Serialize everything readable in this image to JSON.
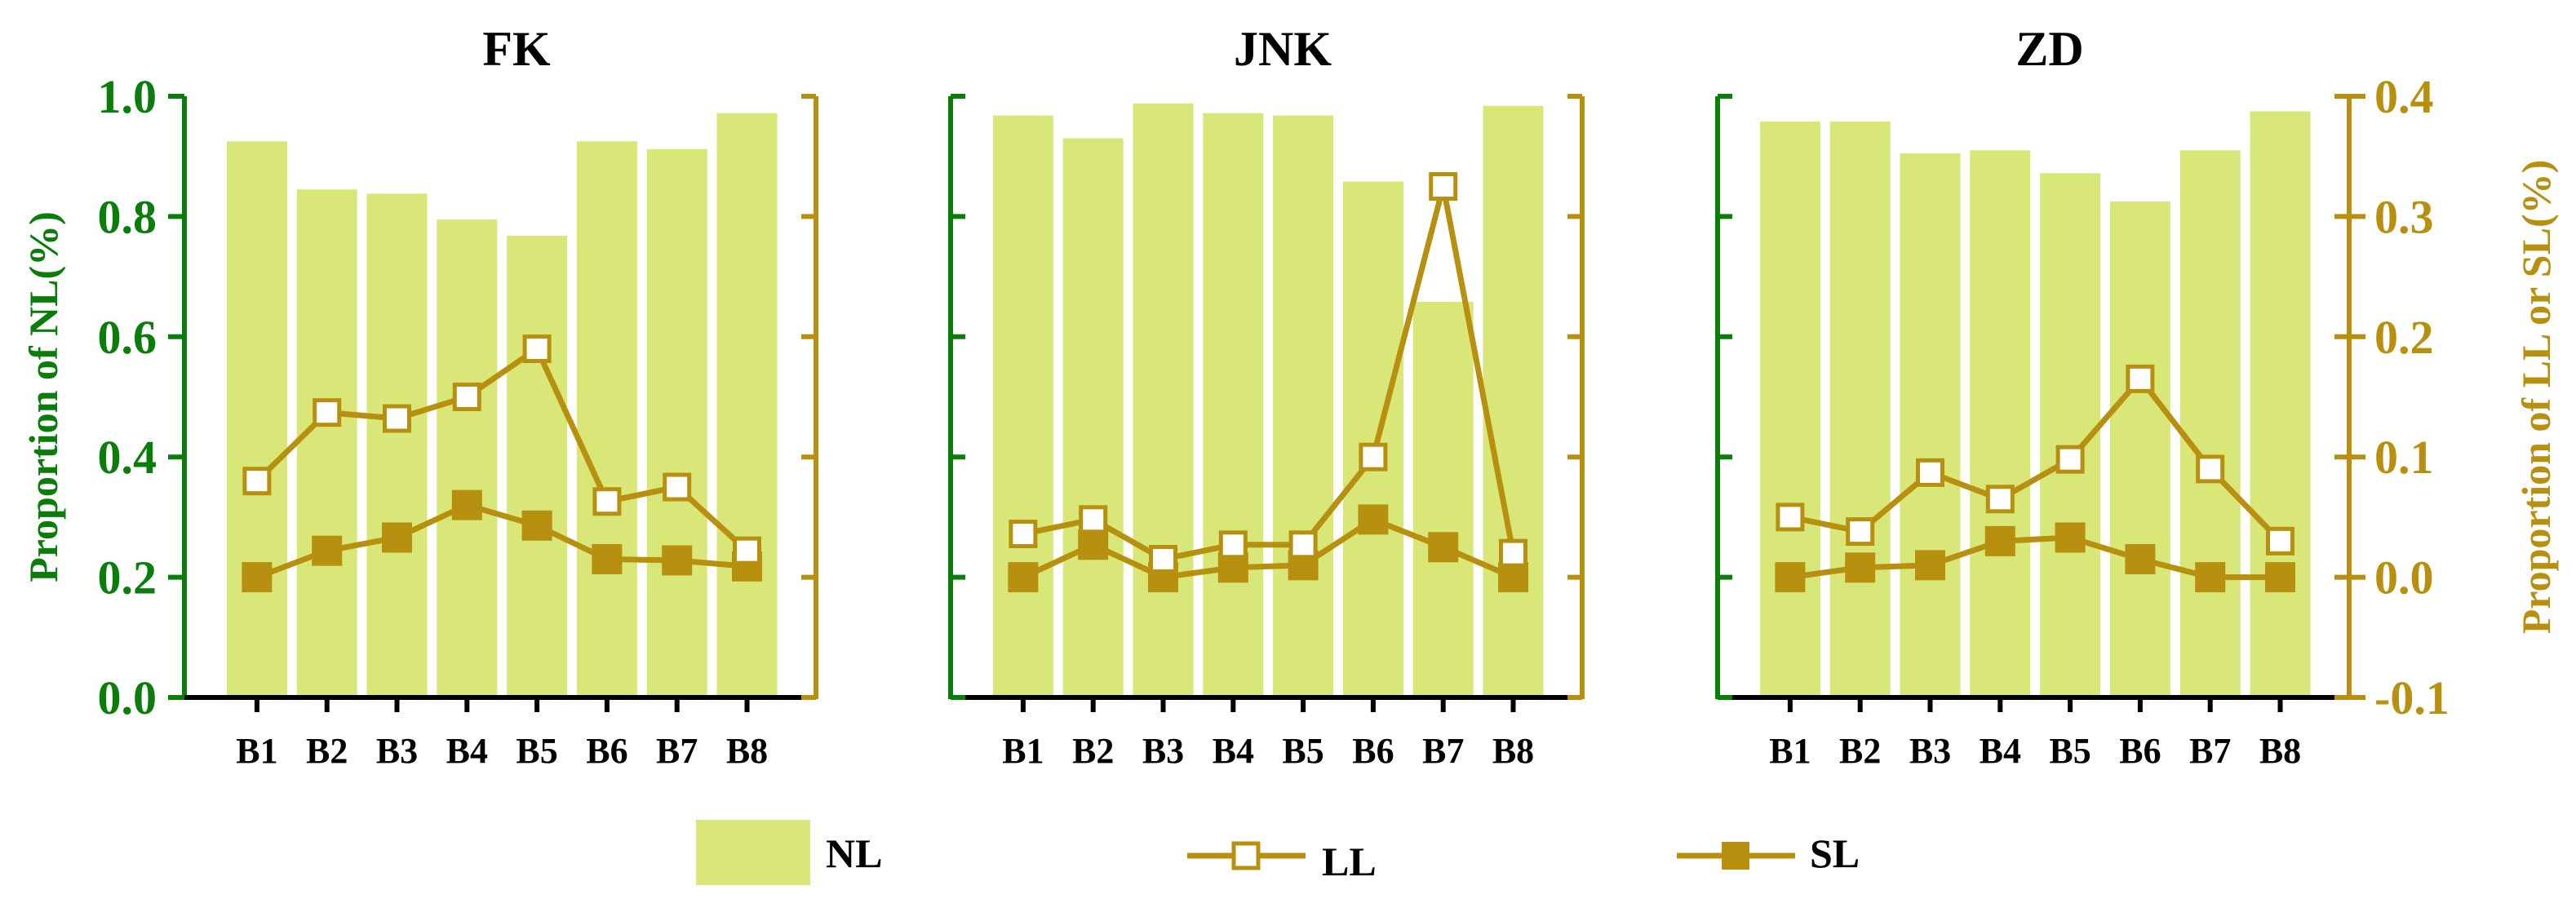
{
  "colors": {
    "nl_bar": "#d9e678",
    "line": "#b8900f",
    "left_axis": "#0a7d0a",
    "right_axis": "#b8900f",
    "text": "#000000"
  },
  "axes": {
    "left_label": "Proportion of NL(%)",
    "right_label": "Proportion of LL or SL(%)",
    "left_ticks": [
      "0.0",
      "0.2",
      "0.4",
      "0.6",
      "0.8",
      "1.0"
    ],
    "right_ticks": [
      "-0.1",
      "0.0",
      "0.1",
      "0.2",
      "0.3",
      "0.4"
    ]
  },
  "legend": {
    "nl": "NL",
    "ll": "LL",
    "sl": "SL"
  },
  "chart_data": [
    {
      "type": "bar",
      "title": "FK",
      "categories": [
        "B1",
        "B2",
        "B3",
        "B4",
        "B5",
        "B6",
        "B7",
        "B8"
      ],
      "ylim": [
        0,
        1.0
      ],
      "y2lim": [
        -0.1,
        0.4
      ],
      "series": [
        {
          "name": "NL",
          "axis": "left",
          "type": "bar",
          "values": [
            0.925,
            0.845,
            0.838,
            0.795,
            0.768,
            0.925,
            0.912,
            0.972
          ]
        },
        {
          "name": "LL",
          "axis": "right",
          "type": "line",
          "marker": "open-square",
          "values": [
            0.08,
            0.137,
            0.132,
            0.15,
            0.19,
            0.063,
            0.075,
            0.022
          ]
        },
        {
          "name": "SL",
          "axis": "right",
          "type": "line",
          "marker": "filled-square",
          "values": [
            0.0,
            0.022,
            0.033,
            0.06,
            0.043,
            0.015,
            0.014,
            0.009
          ]
        }
      ]
    },
    {
      "type": "bar",
      "title": "JNK",
      "categories": [
        "B1",
        "B2",
        "B3",
        "B4",
        "B5",
        "B6",
        "B7",
        "B8"
      ],
      "ylim": [
        0,
        1.0
      ],
      "y2lim": [
        -0.1,
        0.4
      ],
      "series": [
        {
          "name": "NL",
          "axis": "left",
          "type": "bar",
          "values": [
            0.968,
            0.93,
            0.988,
            0.972,
            0.968,
            0.858,
            0.658,
            0.984
          ]
        },
        {
          "name": "LL",
          "axis": "right",
          "type": "line",
          "marker": "open-square",
          "values": [
            0.036,
            0.048,
            0.015,
            0.027,
            0.027,
            0.1,
            0.325,
            0.02
          ]
        },
        {
          "name": "SL",
          "axis": "right",
          "type": "line",
          "marker": "filled-square",
          "values": [
            0.0,
            0.027,
            0.0,
            0.008,
            0.01,
            0.048,
            0.025,
            0.0
          ]
        }
      ]
    },
    {
      "type": "bar",
      "title": "ZD",
      "categories": [
        "B1",
        "B2",
        "B3",
        "B4",
        "B5",
        "B6",
        "B7",
        "B8"
      ],
      "ylim": [
        0,
        1.0
      ],
      "y2lim": [
        -0.1,
        0.4
      ],
      "series": [
        {
          "name": "NL",
          "axis": "left",
          "type": "bar",
          "values": [
            0.958,
            0.958,
            0.905,
            0.91,
            0.872,
            0.825,
            0.91,
            0.975
          ]
        },
        {
          "name": "LL",
          "axis": "right",
          "type": "line",
          "marker": "open-square",
          "values": [
            0.05,
            0.038,
            0.087,
            0.065,
            0.098,
            0.165,
            0.09,
            0.03
          ]
        },
        {
          "name": "SL",
          "axis": "right",
          "type": "line",
          "marker": "filled-square",
          "values": [
            0.0,
            0.008,
            0.01,
            0.03,
            0.033,
            0.015,
            0.0,
            0.0
          ]
        }
      ]
    }
  ]
}
